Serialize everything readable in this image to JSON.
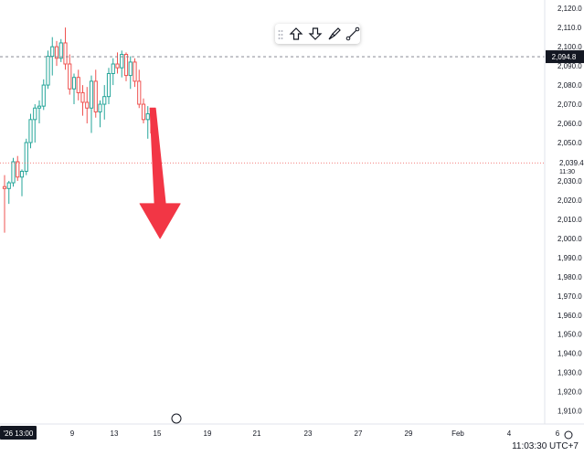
{
  "chart_data": {
    "type": "candlestick",
    "ylim": [
      1906,
      2122
    ],
    "y_ticks": [
      1910,
      1920,
      1930,
      1940,
      1950,
      1960,
      1970,
      1980,
      1990,
      2000,
      2010,
      2020,
      2030,
      2040,
      2050,
      2060,
      2070,
      2080,
      2090,
      2100,
      2110,
      2120
    ],
    "y_tick_labels": [
      "1,910.0",
      "1,920.0",
      "1,930.0",
      "1,940.0",
      "1,950.0",
      "1,960.0",
      "1,970.0",
      "1,980.0",
      "1,990.0",
      "2,000.0",
      "2,010.0",
      "2,020.0",
      "2,030.0",
      "2,040.0",
      "2,050.0",
      "2,060.0",
      "2,070.0",
      "2,080.0",
      "2,090.0",
      "2,100.0",
      "2,110.0",
      "2,120.0"
    ],
    "x_labels": [
      "'26  13:00",
      "9",
      "13",
      "15",
      "19",
      "21",
      "23",
      "27",
      "29",
      "Feb",
      "4",
      "6"
    ],
    "current_price": {
      "value": 2039.4,
      "label": "2,039.4",
      "time": "11:30"
    },
    "hover_price": {
      "value": 2094.8,
      "label": "2,094.8"
    },
    "candles": [
      [
        2027,
        2033,
        2003,
        2026
      ],
      [
        2026,
        2030,
        2018,
        2029
      ],
      [
        2029,
        2042,
        2027,
        2040
      ],
      [
        2040,
        2043,
        2030,
        2032
      ],
      [
        2032,
        2036,
        2022,
        2035
      ],
      [
        2035,
        2052,
        2033,
        2050
      ],
      [
        2050,
        2065,
        2047,
        2062
      ],
      [
        2062,
        2070,
        2050,
        2068
      ],
      [
        2068,
        2072,
        2060,
        2069
      ],
      [
        2069,
        2083,
        2067,
        2080
      ],
      [
        2080,
        2098,
        2078,
        2095
      ],
      [
        2095,
        2105,
        2085,
        2100
      ],
      [
        2100,
        2103,
        2090,
        2094
      ],
      [
        2094,
        2104,
        2092,
        2102
      ],
      [
        2102,
        2110,
        2088,
        2091
      ],
      [
        2091,
        2096,
        2075,
        2078
      ],
      [
        2078,
        2086,
        2070,
        2084
      ],
      [
        2084,
        2088,
        2072,
        2076
      ],
      [
        2076,
        2080,
        2064,
        2071
      ],
      [
        2071,
        2079,
        2060,
        2068
      ],
      [
        2068,
        2085,
        2055,
        2082
      ],
      [
        2082,
        2088,
        2063,
        2066
      ],
      [
        2066,
        2072,
        2058,
        2070
      ],
      [
        2070,
        2080,
        2062,
        2074
      ],
      [
        2074,
        2089,
        2070,
        2086
      ],
      [
        2086,
        2094,
        2080,
        2091
      ],
      [
        2091,
        2097,
        2086,
        2089
      ],
      [
        2089,
        2098,
        2084,
        2096
      ],
      [
        2096,
        2097,
        2082,
        2085
      ],
      [
        2085,
        2095,
        2078,
        2092
      ],
      [
        2092,
        2094,
        2079,
        2082
      ],
      [
        2082,
        2088,
        2068,
        2070
      ],
      [
        2070,
        2073,
        2060,
        2062
      ],
      [
        2062,
        2069,
        2052,
        2065
      ],
      [
        2065,
        2067,
        2052,
        2055
      ],
      [
        2055,
        2058,
        2033,
        2039
      ]
    ],
    "arrow": {
      "x_index": 33.5,
      "y_start": 2068,
      "y_end": 2000
    }
  }
}
